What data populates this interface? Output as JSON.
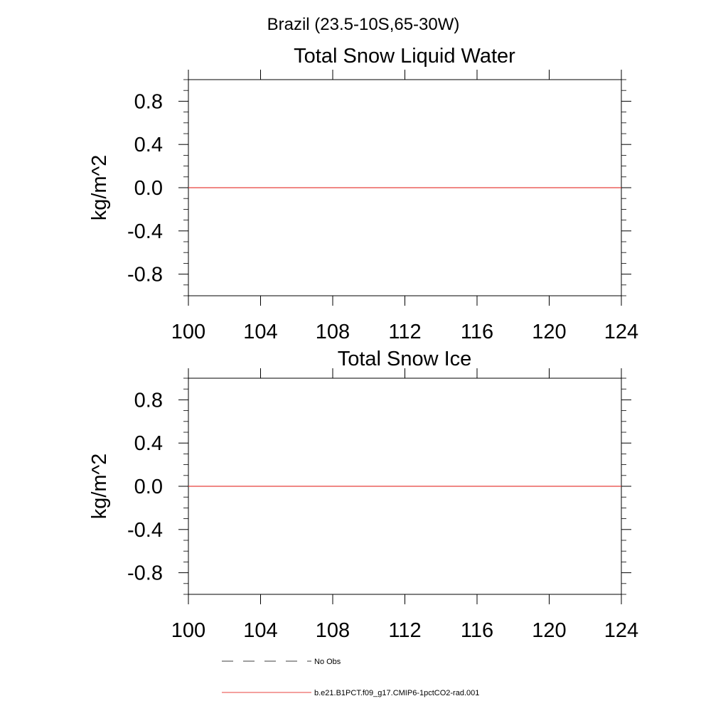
{
  "figure_title": "Brazil (23.5-10S,65-30W)",
  "colors": {
    "axis": "#000000",
    "model_line": "#e8413c",
    "obs_line": "#000000"
  },
  "chart_data": [
    {
      "type": "line",
      "title": "Total Snow Liquid Water",
      "xlabel": "",
      "ylabel": "kg/m^2",
      "xlim": [
        100,
        124
      ],
      "ylim": [
        -1.0,
        1.0
      ],
      "x_ticks": [
        100,
        104,
        108,
        112,
        116,
        120,
        124
      ],
      "x_tick_labels": [
        "100",
        "104",
        "108",
        "112",
        "116",
        "120",
        "124"
      ],
      "y_ticks": [
        0.8,
        0.4,
        0.0,
        -0.4,
        -0.8
      ],
      "y_tick_labels": [
        "0.8",
        "0.4",
        "0.0",
        "-0.4",
        "-0.8"
      ],
      "grid": false,
      "series": [
        {
          "name": "b.e21.B1PCT.f09_g17.CMIP6-1pctCO2-rad.001",
          "x": [
            100,
            124
          ],
          "y": [
            0.0,
            0.0
          ]
        }
      ]
    },
    {
      "type": "line",
      "title": "Total Snow Ice",
      "xlabel": "",
      "ylabel": "kg/m^2",
      "xlim": [
        100,
        124
      ],
      "ylim": [
        -1.0,
        1.0
      ],
      "x_ticks": [
        100,
        104,
        108,
        112,
        116,
        120,
        124
      ],
      "x_tick_labels": [
        "100",
        "104",
        "108",
        "112",
        "116",
        "120",
        "124"
      ],
      "y_ticks": [
        0.8,
        0.4,
        0.0,
        -0.4,
        -0.8
      ],
      "y_tick_labels": [
        "0.8",
        "0.4",
        "0.0",
        "-0.4",
        "-0.8"
      ],
      "grid": false,
      "series": [
        {
          "name": "b.e21.B1PCT.f09_g17.CMIP6-1pctCO2-rad.001",
          "x": [
            100,
            124
          ],
          "y": [
            0.0,
            0.0
          ]
        }
      ]
    }
  ],
  "legend": {
    "placement": "bottom",
    "items": [
      {
        "label": "No Obs",
        "style": "dashed"
      },
      {
        "label": "b.e21.B1PCT.f09_g17.CMIP6-1pctCO2-rad.001",
        "style": "solid"
      }
    ]
  }
}
